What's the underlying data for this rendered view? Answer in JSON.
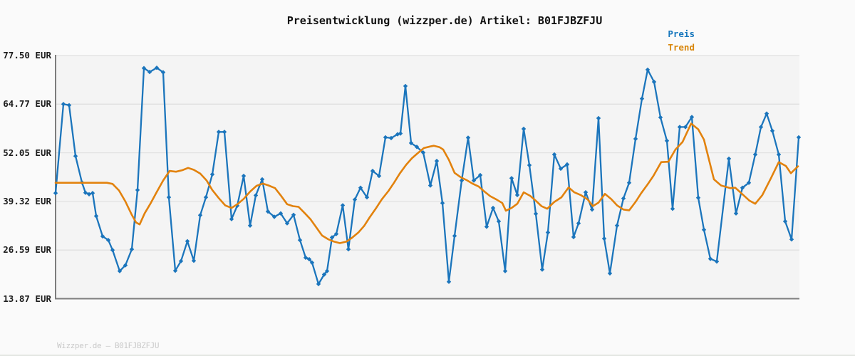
{
  "header": {
    "title": "Preisentwicklung (wizzper.de) Artikel: B01FJBZFJU"
  },
  "legend": [
    {
      "label": "Preis",
      "color": "#1777bd"
    },
    {
      "label": "Trend",
      "color": "#d8860b"
    }
  ],
  "footer": {
    "text": "Wizzper.de — B01FJBZFJU"
  },
  "colors": {
    "page_background": "#fafafa",
    "plot_background": "#f4f4f4",
    "gridline": "#e1e1e1",
    "axis_spine": "#7d7d7d",
    "price_line": "#1b75bc",
    "trend_line": "#e2820d",
    "title_text": "#111111",
    "tick_text": "#1c1c1c",
    "footer_text": "#c9c9c9"
  },
  "chart_data": {
    "type": "line",
    "title": "Preisentwicklung (wizzper.de) Artikel: B01FJBZFJU",
    "xlabel": "",
    "ylabel": "",
    "grid": true,
    "legend_position": "top-right",
    "y_axis": {
      "unit": "EUR",
      "min": 13.87,
      "max": 77.5,
      "ticks": [
        {
          "value": 77.5,
          "label": "77.50 EUR"
        },
        {
          "value": 64.77,
          "label": "64.77 EUR"
        },
        {
          "value": 52.05,
          "label": "52.05 EUR"
        },
        {
          "value": 39.32,
          "label": "39.32 EUR"
        },
        {
          "value": 26.59,
          "label": "26.59 EUR"
        },
        {
          "value": 13.87,
          "label": "13.87 EUR"
        }
      ]
    },
    "x_axis": {
      "labels": [],
      "note": "time axis, no tick labels shown"
    },
    "series": [
      {
        "name": "Preis",
        "color": "#1b75bc",
        "marker": "diamond",
        "line_width": 2.3,
        "points": [
          [
            78,
            41.5
          ],
          [
            89,
            64.8
          ],
          [
            97,
            64.5
          ],
          [
            106,
            51.2
          ],
          [
            115,
            44.3
          ],
          [
            120,
            41.6
          ],
          [
            125,
            41.2
          ],
          [
            130,
            41.5
          ],
          [
            135,
            35.5
          ],
          [
            144,
            30.2
          ],
          [
            152,
            29.2
          ],
          [
            158,
            26.6
          ],
          [
            168,
            21.1
          ],
          [
            176,
            22.6
          ],
          [
            185,
            26.8
          ],
          [
            193,
            42.3
          ],
          [
            202,
            74.2
          ],
          [
            210,
            73.2
          ],
          [
            220,
            74.3
          ],
          [
            229,
            73.1
          ],
          [
            237,
            40.4
          ],
          [
            246,
            21.2
          ],
          [
            254,
            23.7
          ],
          [
            263,
            28.9
          ],
          [
            272,
            23.8
          ],
          [
            281,
            35.7
          ],
          [
            289,
            40.4
          ],
          [
            298,
            46.4
          ],
          [
            307,
            57.5
          ],
          [
            315,
            57.5
          ],
          [
            325,
            34.7
          ],
          [
            333,
            38.2
          ],
          [
            342,
            46.0
          ],
          [
            351,
            33.0
          ],
          [
            359,
            40.9
          ],
          [
            368,
            45.1
          ],
          [
            376,
            36.7
          ],
          [
            385,
            35.3
          ],
          [
            394,
            36.2
          ],
          [
            403,
            33.6
          ],
          [
            412,
            35.8
          ],
          [
            421,
            29.2
          ],
          [
            429,
            24.6
          ],
          [
            434,
            24.2
          ],
          [
            438,
            23.3
          ],
          [
            447,
            17.7
          ],
          [
            455,
            20.2
          ],
          [
            459,
            21.1
          ],
          [
            466,
            29.9
          ],
          [
            472,
            30.8
          ],
          [
            481,
            38.3
          ],
          [
            489,
            26.8
          ],
          [
            498,
            39.8
          ],
          [
            506,
            42.9
          ],
          [
            515,
            40.4
          ],
          [
            523,
            47.3
          ],
          [
            532,
            46.0
          ],
          [
            541,
            56.1
          ],
          [
            549,
            55.9
          ],
          [
            558,
            56.9
          ],
          [
            562,
            57.1
          ],
          [
            569,
            69.5
          ],
          [
            577,
            54.6
          ],
          [
            585,
            53.6
          ],
          [
            594,
            52.1
          ],
          [
            604,
            43.5
          ],
          [
            613,
            49.9
          ],
          [
            621,
            38.9
          ],
          [
            630,
            18.3
          ],
          [
            638,
            30.3
          ],
          [
            648,
            44.8
          ],
          [
            657,
            56.0
          ],
          [
            665,
            44.8
          ],
          [
            674,
            46.2
          ],
          [
            683,
            32.7
          ],
          [
            692,
            37.6
          ],
          [
            700,
            34.1
          ],
          [
            709,
            21.1
          ],
          [
            718,
            45.4
          ],
          [
            726,
            41.0
          ],
          [
            735,
            58.3
          ],
          [
            743,
            48.8
          ],
          [
            752,
            36.1
          ],
          [
            761,
            21.5
          ],
          [
            769,
            31.2
          ],
          [
            778,
            51.6
          ],
          [
            787,
            47.9
          ],
          [
            796,
            49.0
          ],
          [
            805,
            30.0
          ],
          [
            812,
            33.6
          ],
          [
            822,
            41.7
          ],
          [
            831,
            37.2
          ],
          [
            840,
            61.1
          ],
          [
            848,
            29.6
          ],
          [
            856,
            20.5
          ],
          [
            866,
            33.0
          ],
          [
            875,
            40.1
          ],
          [
            883,
            44.2
          ],
          [
            892,
            55.7
          ],
          [
            901,
            66.2
          ],
          [
            909,
            73.8
          ],
          [
            918,
            70.6
          ],
          [
            927,
            61.3
          ],
          [
            936,
            55.2
          ],
          [
            944,
            37.4
          ],
          [
            954,
            58.8
          ],
          [
            962,
            58.8
          ],
          [
            971,
            61.4
          ],
          [
            980,
            40.3
          ],
          [
            988,
            31.9
          ],
          [
            997,
            24.3
          ],
          [
            1006,
            23.6
          ],
          [
            1023,
            50.5
          ],
          [
            1033,
            36.2
          ],
          [
            1042,
            42.9
          ],
          [
            1051,
            44.2
          ],
          [
            1060,
            51.6
          ],
          [
            1068,
            58.8
          ],
          [
            1076,
            62.3
          ],
          [
            1084,
            57.8
          ],
          [
            1093,
            51.6
          ],
          [
            1102,
            34.1
          ],
          [
            1111,
            29.4
          ],
          [
            1121,
            56.1
          ]
        ]
      },
      {
        "name": "Trend",
        "color": "#e2820d",
        "marker": "none",
        "line_width": 2.6,
        "points": [
          [
            78,
            44.2
          ],
          [
            100,
            44.2
          ],
          [
            125,
            44.2
          ],
          [
            150,
            44.2
          ],
          [
            158,
            43.9
          ],
          [
            167,
            42.2
          ],
          [
            176,
            39.3
          ],
          [
            185,
            35.8
          ],
          [
            191,
            33.8
          ],
          [
            196,
            33.3
          ],
          [
            203,
            36.2
          ],
          [
            211,
            38.7
          ],
          [
            220,
            41.8
          ],
          [
            229,
            44.8
          ],
          [
            238,
            47.3
          ],
          [
            247,
            47.1
          ],
          [
            256,
            47.5
          ],
          [
            264,
            48.1
          ],
          [
            272,
            47.6
          ],
          [
            281,
            46.6
          ],
          [
            290,
            44.8
          ],
          [
            298,
            42.3
          ],
          [
            307,
            40.2
          ],
          [
            316,
            38.3
          ],
          [
            325,
            37.6
          ],
          [
            334,
            38.7
          ],
          [
            342,
            40.0
          ],
          [
            351,
            41.9
          ],
          [
            360,
            43.4
          ],
          [
            369,
            44.0
          ],
          [
            377,
            43.5
          ],
          [
            386,
            42.8
          ],
          [
            394,
            40.9
          ],
          [
            403,
            38.6
          ],
          [
            411,
            38.1
          ],
          [
            419,
            37.9
          ],
          [
            428,
            36.2
          ],
          [
            436,
            34.6
          ],
          [
            444,
            32.5
          ],
          [
            452,
            30.4
          ],
          [
            461,
            29.4
          ],
          [
            469,
            28.8
          ],
          [
            477,
            28.4
          ],
          [
            486,
            28.8
          ],
          [
            494,
            29.8
          ],
          [
            503,
            31.2
          ],
          [
            511,
            32.9
          ],
          [
            519,
            35.2
          ],
          [
            528,
            37.6
          ],
          [
            536,
            39.9
          ],
          [
            545,
            42.0
          ],
          [
            553,
            44.2
          ],
          [
            561,
            46.6
          ],
          [
            570,
            48.9
          ],
          [
            578,
            50.6
          ],
          [
            586,
            51.9
          ],
          [
            595,
            53.3
          ],
          [
            604,
            53.7
          ],
          [
            609,
            53.9
          ],
          [
            617,
            53.5
          ],
          [
            622,
            52.9
          ],
          [
            630,
            50.2
          ],
          [
            638,
            46.8
          ],
          [
            647,
            45.6
          ],
          [
            655,
            44.9
          ],
          [
            663,
            44.0
          ],
          [
            672,
            43.2
          ],
          [
            680,
            41.9
          ],
          [
            688,
            40.7
          ],
          [
            697,
            39.8
          ],
          [
            705,
            38.9
          ],
          [
            710,
            36.9
          ],
          [
            718,
            37.6
          ],
          [
            726,
            38.7
          ],
          [
            735,
            41.7
          ],
          [
            744,
            40.8
          ],
          [
            752,
            39.5
          ],
          [
            760,
            38.1
          ],
          [
            768,
            37.4
          ],
          [
            778,
            39.2
          ],
          [
            788,
            40.4
          ],
          [
            798,
            43.0
          ],
          [
            806,
            41.7
          ],
          [
            815,
            41.0
          ],
          [
            825,
            39.8
          ],
          [
            832,
            38.1
          ],
          [
            840,
            39.0
          ],
          [
            849,
            41.3
          ],
          [
            858,
            39.9
          ],
          [
            866,
            38.3
          ],
          [
            875,
            37.2
          ],
          [
            883,
            37.0
          ],
          [
            892,
            39.2
          ],
          [
            900,
            41.5
          ],
          [
            909,
            43.8
          ],
          [
            917,
            46.0
          ],
          [
            928,
            49.6
          ],
          [
            938,
            49.7
          ],
          [
            948,
            52.9
          ],
          [
            958,
            54.9
          ],
          [
            970,
            59.7
          ],
          [
            980,
            58.2
          ],
          [
            988,
            55.5
          ],
          [
            1002,
            45.1
          ],
          [
            1012,
            43.5
          ],
          [
            1025,
            42.8
          ],
          [
            1032,
            42.9
          ],
          [
            1042,
            41.2
          ],
          [
            1052,
            39.5
          ],
          [
            1060,
            38.7
          ],
          [
            1070,
            41.0
          ],
          [
            1082,
            45.4
          ],
          [
            1093,
            49.6
          ],
          [
            1103,
            48.6
          ],
          [
            1110,
            46.7
          ],
          [
            1120,
            48.5
          ]
        ]
      }
    ]
  }
}
